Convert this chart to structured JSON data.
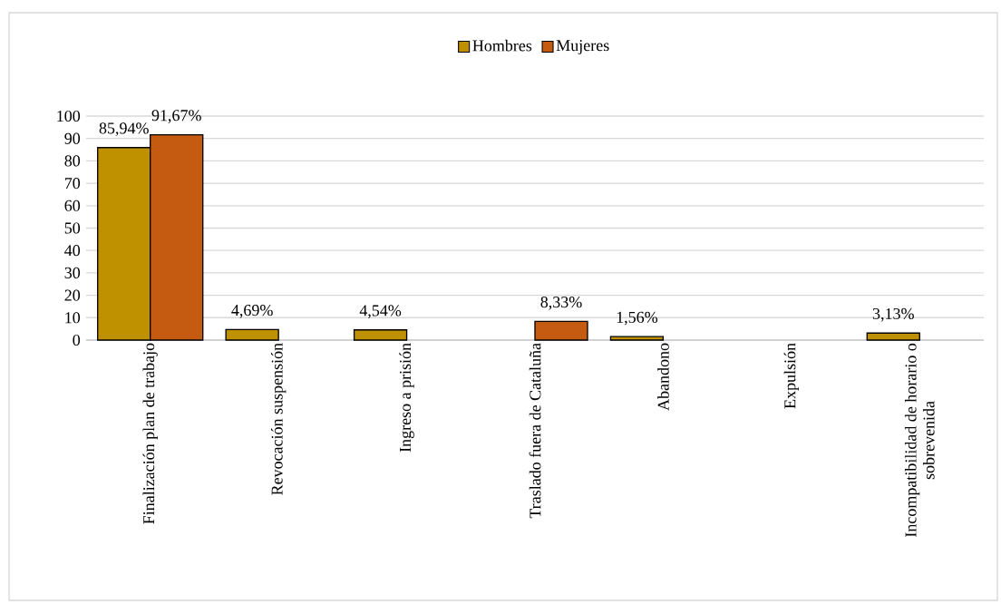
{
  "chart_data": {
    "type": "bar",
    "categories": [
      "Finalización plan de trabajo",
      "Revocación suspensión",
      "Ingreso a prisión",
      "Traslado fuera de Cataluña",
      "Abandono",
      "Expulsión",
      "Incompatibilidad de horario o sobrevenida"
    ],
    "series": [
      {
        "name": "Hombres",
        "color": "#bf9000",
        "values": [
          85.94,
          4.69,
          4.54,
          null,
          1.56,
          null,
          3.13
        ],
        "value_labels": [
          "85,94%",
          "4,69%",
          "4,54%",
          null,
          "1,56%",
          null,
          "3,13%"
        ]
      },
      {
        "name": "Mujeres",
        "color": "#c55a11",
        "values": [
          91.67,
          null,
          null,
          8.33,
          null,
          null,
          null
        ],
        "value_labels": [
          "91,67%",
          null,
          null,
          "8,33%",
          null,
          null,
          null
        ]
      }
    ],
    "ylim": [
      0,
      100
    ],
    "yticks": [
      0,
      10,
      20,
      30,
      40,
      50,
      60,
      70,
      80,
      90,
      100
    ],
    "grid": "y",
    "legend": "top"
  }
}
